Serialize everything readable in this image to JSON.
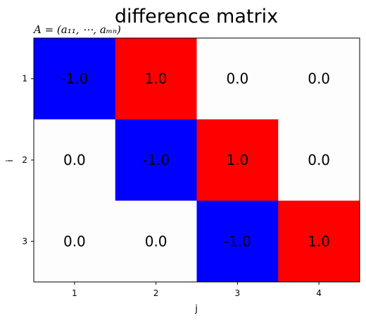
{
  "chart_data": {
    "type": "heatmap",
    "title": "difference matrix",
    "subtitle": "A = (a₁₁, ⋯, aₘₙ)",
    "xlabel": "j",
    "ylabel": "i",
    "row_labels": [
      "1",
      "2",
      "3"
    ],
    "col_labels": [
      "1",
      "2",
      "3",
      "4"
    ],
    "values": [
      [
        -1.0,
        1.0,
        0.0,
        0.0
      ],
      [
        0.0,
        -1.0,
        1.0,
        0.0
      ],
      [
        0.0,
        0.0,
        -1.0,
        1.0
      ]
    ],
    "cell_text": [
      [
        "-1.0",
        "1.0",
        "0.0",
        "0.0"
      ],
      [
        "0.0",
        "-1.0",
        "1.0",
        "0.0"
      ],
      [
        "0.0",
        "0.0",
        "-1.0",
        "1.0"
      ]
    ],
    "colormap": "bwr",
    "vmin": -1,
    "vmax": 1,
    "colors": {
      "negative": "#0000ff",
      "zero": "#fdfdfd",
      "positive": "#ff0000"
    }
  }
}
